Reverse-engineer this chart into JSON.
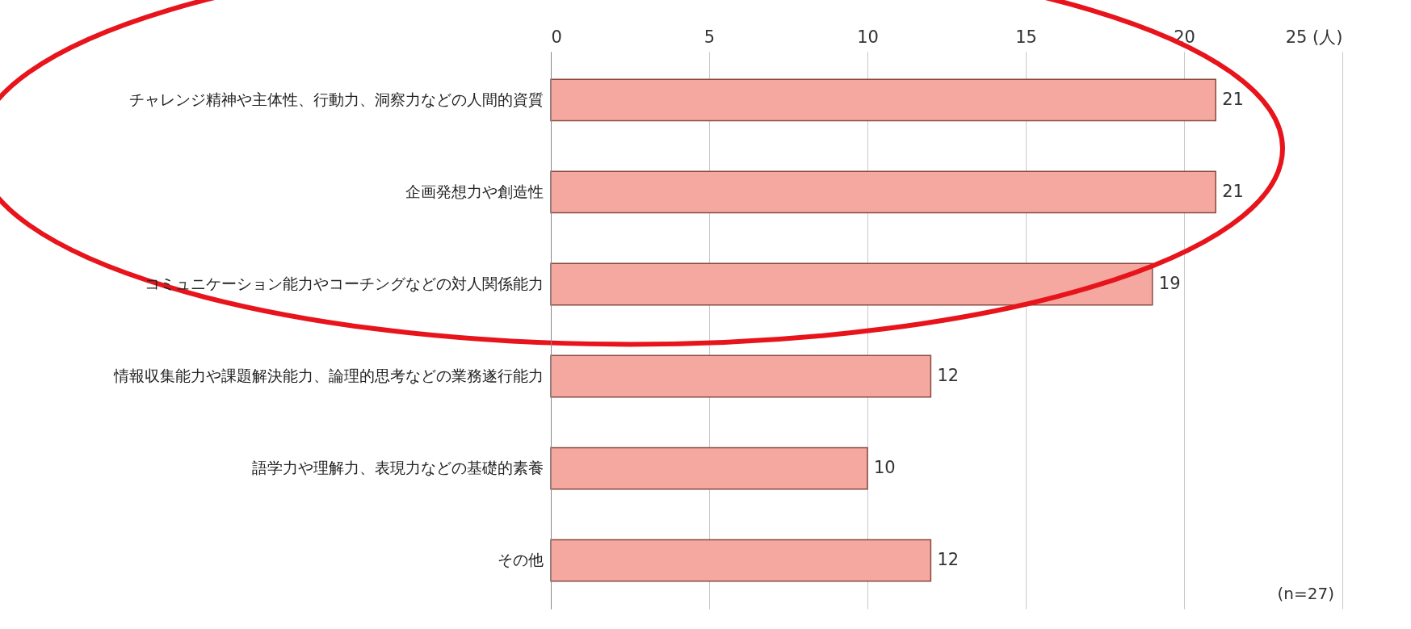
{
  "chart_data": {
    "type": "bar",
    "orientation": "horizontal",
    "categories": [
      "チャレンジ精神や主体性、行動力、洞察力などの人間的資質",
      "企画発想力や創造性",
      "コミュニケーション能力やコーチングなどの対人関係能力",
      "情報収集能力や課題解決能力、論理的思考などの業務遂行能力",
      "語学力や理解力、表現力などの基礎的素養",
      "その他"
    ],
    "values": [
      21,
      21,
      19,
      12,
      10,
      12
    ],
    "color": "#f4a8a0",
    "xlim": [
      0,
      25
    ],
    "xticks": [
      0,
      5,
      10,
      15,
      20,
      {
        "value": 25,
        "label": "25 (人)"
      }
    ],
    "grid": "x",
    "data_labels": true,
    "annotations": [
      "(n=27)"
    ]
  }
}
